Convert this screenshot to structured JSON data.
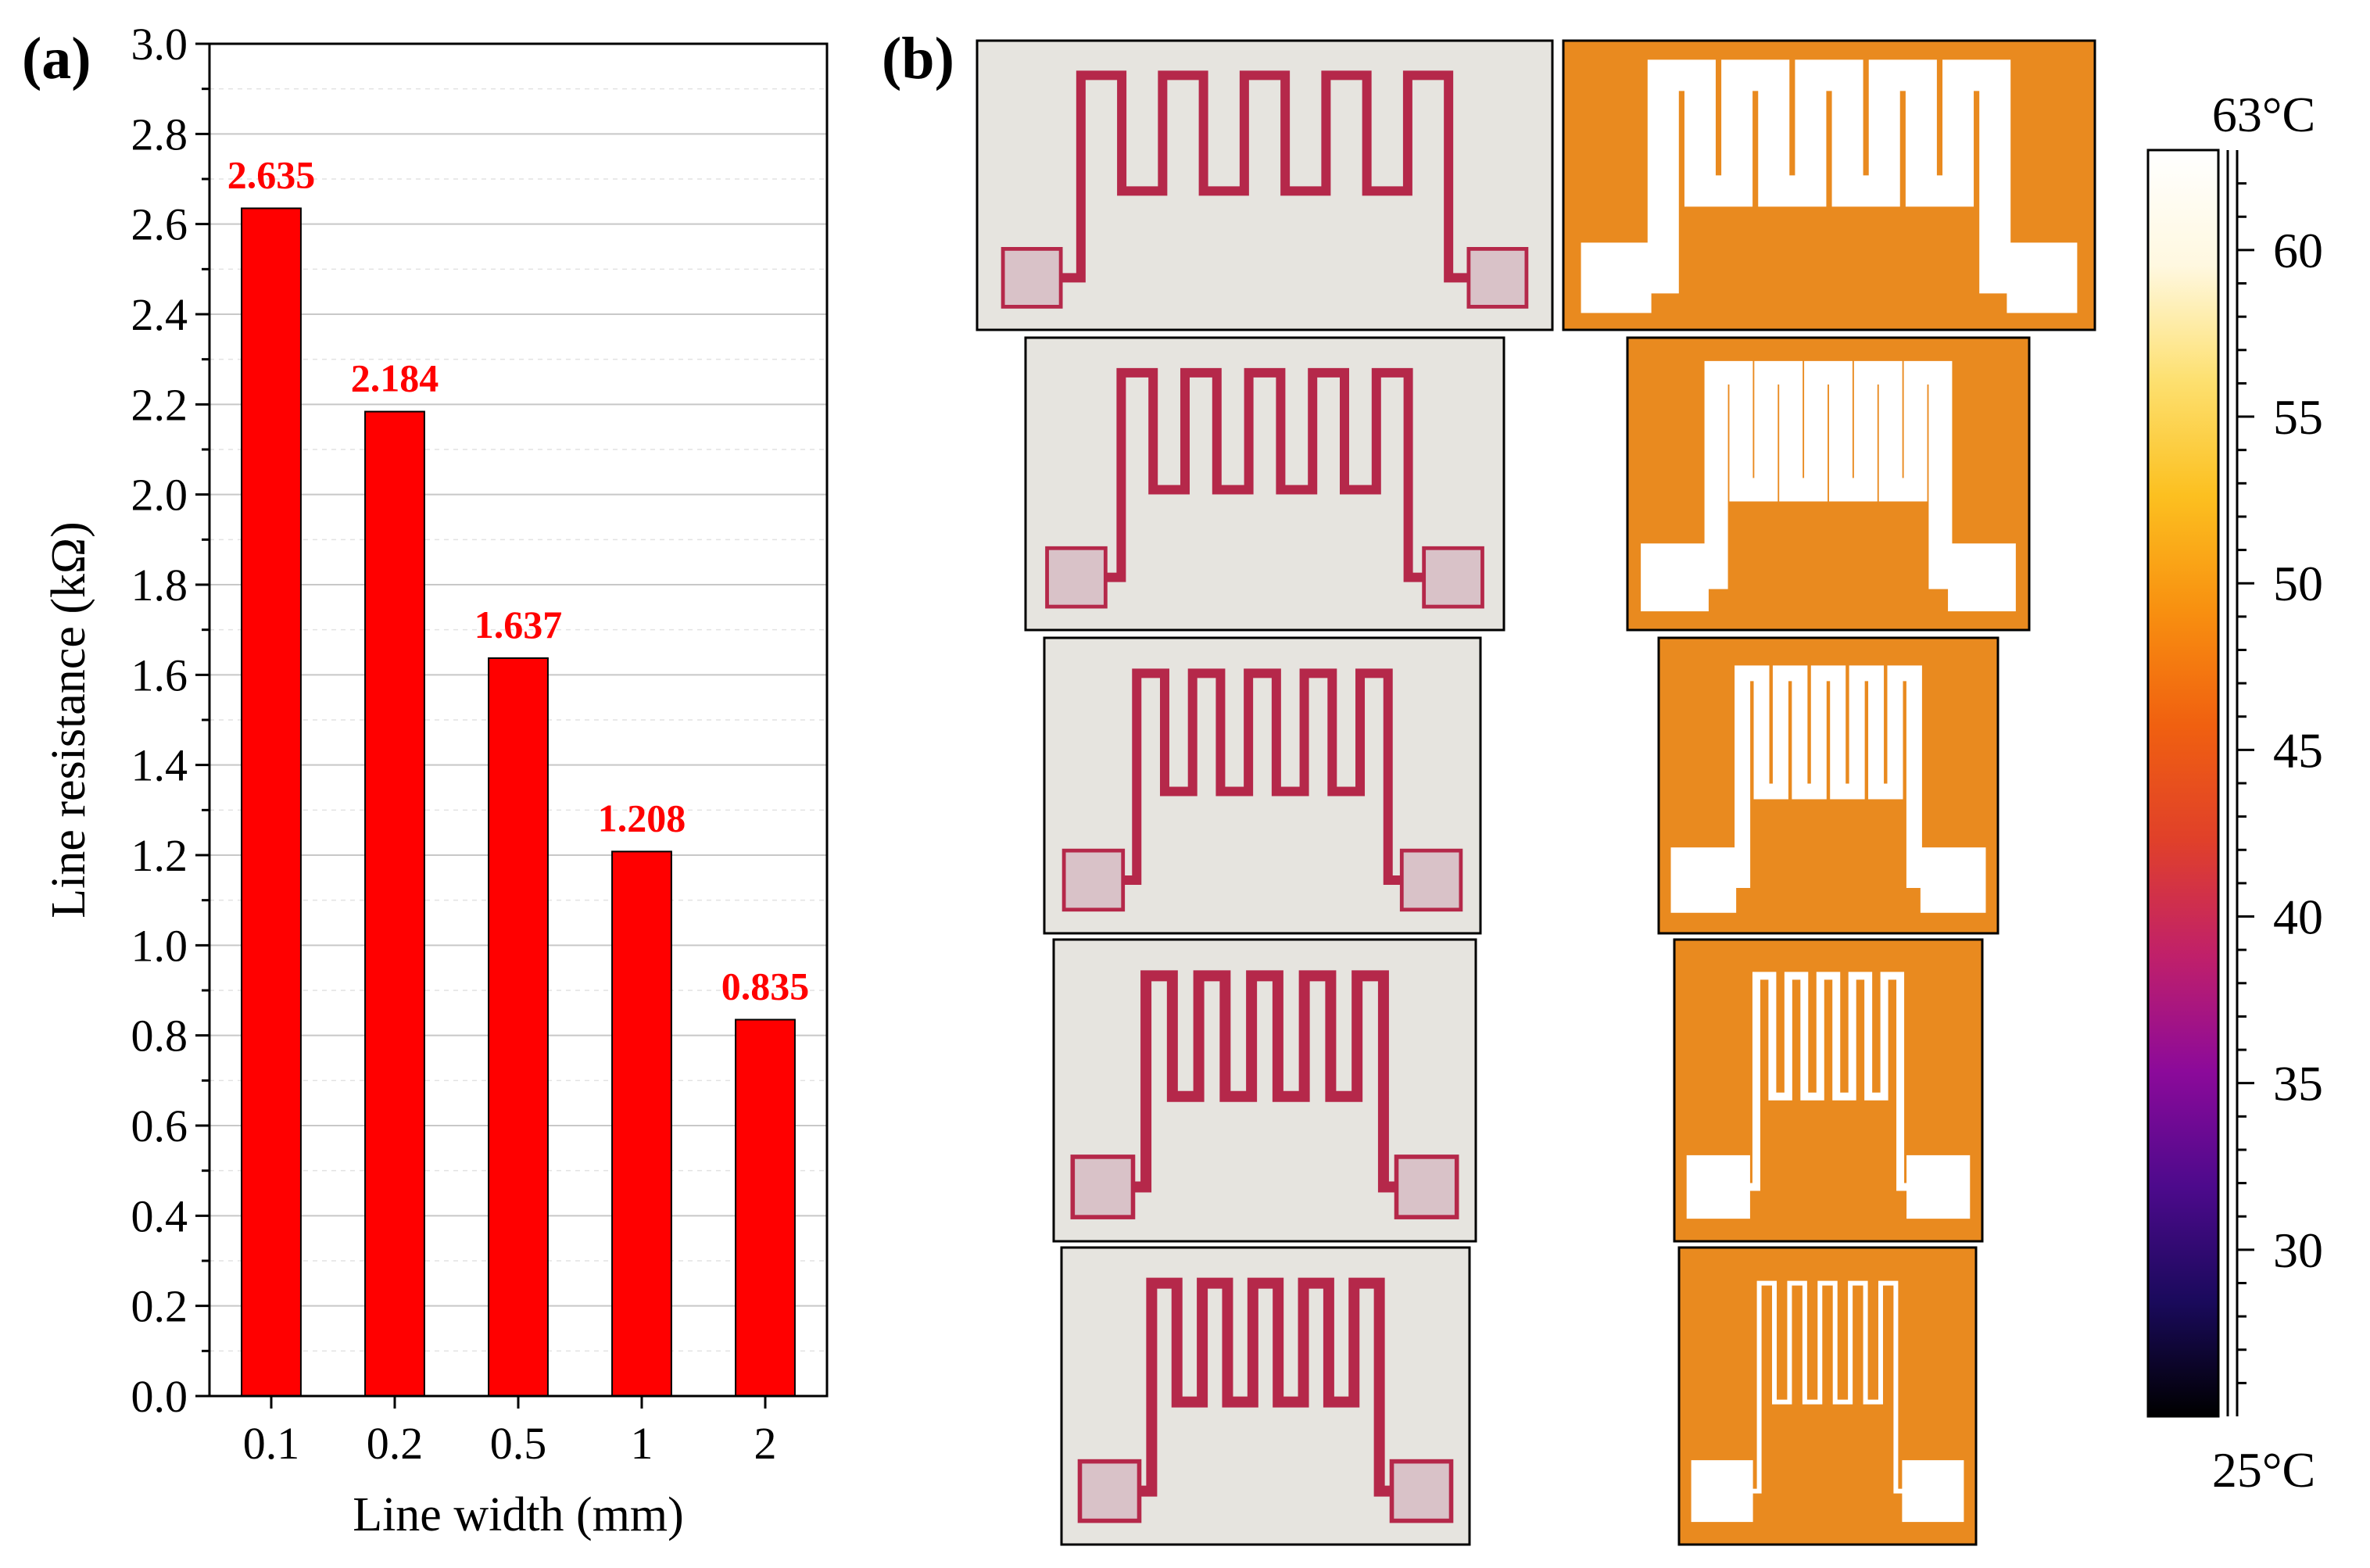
{
  "panel_a_label": "(a)",
  "panel_b_label": "(b)",
  "chart_data": {
    "type": "bar",
    "categories": [
      "0.1",
      "0.2",
      "0.5",
      "1",
      "2"
    ],
    "values": [
      2.635,
      2.184,
      1.637,
      1.208,
      0.835
    ],
    "value_labels": [
      "2.635",
      "2.184",
      "1.637",
      "1.208",
      "0.835"
    ],
    "xlabel": "Line width (mm)",
    "ylabel": "Line resistance (kΩ)",
    "ylim": [
      0,
      3.0
    ],
    "yticks": [
      "0.0",
      "0.2",
      "0.4",
      "0.6",
      "0.8",
      "1.0",
      "1.2",
      "1.4",
      "1.6",
      "1.8",
      "2.0",
      "2.2",
      "2.4",
      "2.6",
      "2.8",
      "3.0"
    ],
    "grid": true,
    "bar_color": "#ff0000",
    "label_color": "#ff0000"
  },
  "colorbar": {
    "max_label": "63°C",
    "min_label": "25°C",
    "ticks": [
      "30",
      "35",
      "40",
      "45",
      "50",
      "55",
      "60"
    ],
    "range": [
      25,
      63
    ],
    "colors": [
      "#000000",
      "#1a0a5c",
      "#4d0a8c",
      "#8c0a9a",
      "#c0206a",
      "#e0402a",
      "#f06010",
      "#f89010",
      "#fcc020",
      "#fde070",
      "#fff8e0",
      "#ffffff"
    ]
  },
  "photos": {
    "print_bg": "#e6e4df",
    "print_line": "#b5284a",
    "thermal_bg": "#e98a1f",
    "thermal_line": "#ffffff"
  }
}
